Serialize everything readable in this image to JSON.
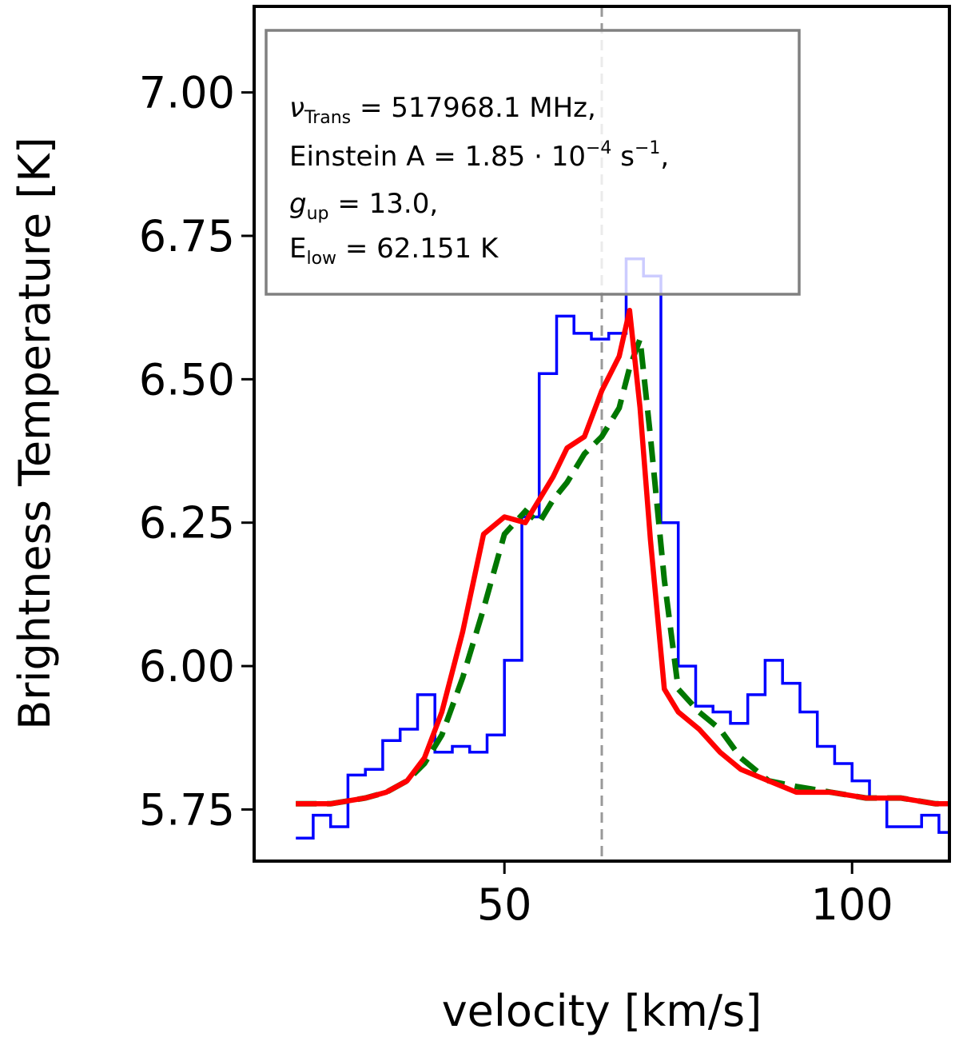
{
  "chart_data": {
    "type": "line",
    "xlabel": "velocity [km/s]",
    "ylabel": "Brightness Temperature [K]",
    "xlim": [
      14,
      114
    ],
    "ylim": [
      5.66,
      7.15
    ],
    "xticks": [
      50,
      100
    ],
    "xtick_labels": [
      "50",
      "100"
    ],
    "yticks": [
      5.75,
      6.0,
      6.25,
      6.5,
      6.75,
      7.0
    ],
    "ytick_labels": [
      "5.75",
      "6.00",
      "6.25",
      "6.50",
      "6.75",
      "7.00"
    ],
    "grid": false,
    "reference_line": {
      "x": 64.0,
      "style": "dashed",
      "color": "#999999"
    },
    "info_box": {
      "line1": {
        "symbol": "ν",
        "sub": "Trans",
        "rest": " = 517968.1 MHz,"
      },
      "line2": {
        "text": "Einstein A = 1.85 · 10",
        "sup": "−4",
        "unit": " s",
        "unit_sup": "−1",
        "end": ","
      },
      "line3": {
        "symbol": "g",
        "sub": "up",
        "rest": " = 13.0,"
      },
      "line4": {
        "symbol": "E",
        "sub": "low",
        "rest": " = 62.151 K"
      }
    },
    "series": [
      {
        "style": "step",
        "color": "#0000ff",
        "x": [
          20,
          22.5,
          25,
          27.5,
          30,
          32.5,
          35,
          37.5,
          40,
          42.5,
          45,
          47.5,
          50,
          52.5,
          55,
          57.5,
          60,
          62.5,
          65,
          67.5,
          70,
          72.5,
          75,
          77.5,
          80,
          82.5,
          85,
          87.5,
          90,
          92.5,
          95,
          97.5,
          100,
          102.5,
          105,
          107.5,
          110,
          112.5,
          115
        ],
        "y": [
          5.7,
          5.74,
          5.72,
          5.81,
          5.82,
          5.87,
          5.89,
          5.95,
          5.85,
          5.86,
          5.85,
          5.88,
          6.01,
          6.26,
          6.51,
          6.61,
          6.58,
          6.57,
          6.58,
          6.71,
          6.68,
          6.25,
          6.0,
          5.93,
          5.92,
          5.9,
          5.95,
          6.01,
          5.97,
          5.92,
          5.86,
          5.83,
          5.8,
          5.77,
          5.72,
          5.72,
          5.74,
          5.71,
          5.71
        ]
      },
      {
        "style": "dashed",
        "color": "#007700",
        "x": [
          20,
          25,
          30,
          33,
          36,
          38.5,
          41,
          44,
          47,
          50,
          53,
          55,
          57,
          59,
          61.5,
          64,
          66.5,
          68,
          69.5,
          71,
          73,
          75,
          78,
          81,
          84,
          88,
          92,
          97,
          102,
          107,
          112,
          114
        ],
        "y": [
          5.76,
          5.76,
          5.77,
          5.78,
          5.8,
          5.83,
          5.88,
          5.98,
          6.1,
          6.23,
          6.27,
          6.25,
          6.29,
          6.32,
          6.37,
          6.4,
          6.45,
          6.52,
          6.57,
          6.4,
          6.15,
          5.96,
          5.92,
          5.89,
          5.84,
          5.8,
          5.79,
          5.78,
          5.77,
          5.77,
          5.76,
          5.76
        ]
      },
      {
        "style": "solid",
        "color": "#ff0000",
        "x": [
          20,
          25,
          30,
          33,
          36,
          38.5,
          41,
          44,
          47,
          50,
          53,
          55,
          57,
          59,
          61.5,
          64,
          66.5,
          68,
          69.5,
          71,
          73,
          75,
          78,
          81,
          84,
          88,
          92,
          97,
          102,
          107,
          112,
          114
        ],
        "y": [
          5.76,
          5.76,
          5.77,
          5.78,
          5.8,
          5.84,
          5.92,
          6.06,
          6.23,
          6.26,
          6.25,
          6.29,
          6.33,
          6.38,
          6.4,
          6.48,
          6.54,
          6.62,
          6.45,
          6.22,
          5.96,
          5.92,
          5.89,
          5.85,
          5.82,
          5.8,
          5.78,
          5.78,
          5.77,
          5.77,
          5.76,
          5.76
        ]
      }
    ]
  }
}
